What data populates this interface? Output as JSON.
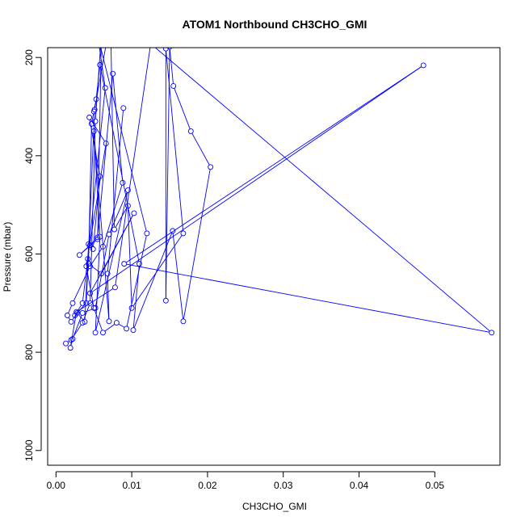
{
  "chart_data": {
    "type": "line",
    "title": "ATOM1 Northbound CH3CHO_GMI",
    "xlabel": "CH3CHO_GMI",
    "ylabel": "Pressure (mbar)",
    "xlim": [
      0.0,
      0.0575
    ],
    "ylim": [
      1030,
      180
    ],
    "y_reversed": true,
    "x_ticks": [
      0.0,
      0.01,
      0.02,
      0.03,
      0.04,
      0.05
    ],
    "x_tick_labels": [
      "0.00",
      "0.01",
      "0.02",
      "0.03",
      "0.04",
      "0.05"
    ],
    "y_ticks": [
      200,
      400,
      600,
      800,
      1000
    ],
    "y_tick_labels": [
      "200",
      "400",
      "600",
      "800",
      "1000"
    ],
    "grid": false,
    "marker": "open-circle",
    "series_color": "#0000ff",
    "series": [
      {
        "points": [
          [
            0.0013,
            782
          ],
          [
            0.002,
            775
          ],
          [
            0.0035,
            740
          ],
          [
            0.0045,
            700
          ],
          [
            0.0052,
            330
          ],
          [
            0.006,
            150
          ],
          [
            0.0055,
            570
          ],
          [
            0.0031,
            602
          ],
          [
            0.0045,
            582
          ],
          [
            0.0055,
            566
          ],
          [
            0.0075,
            233
          ],
          [
            0.0088,
            455
          ],
          [
            0.0062,
            585
          ],
          [
            0.0045,
            625
          ],
          [
            0.0022,
            700
          ],
          [
            0.0015,
            725
          ],
          [
            0.002,
            738
          ],
          [
            0.0028,
            720
          ],
          [
            0.0038,
            738
          ],
          [
            0.0043,
            580
          ],
          [
            0.0049,
            590
          ],
          [
            0.0058,
            442
          ],
          [
            0.0044,
            322
          ],
          [
            0.0066,
            375
          ],
          [
            0.004,
            625
          ],
          [
            0.005,
            710
          ],
          [
            0.0062,
            760
          ],
          [
            0.008,
            740
          ],
          [
            0.0093,
            752
          ],
          [
            0.012,
            558
          ],
          [
            0.0055,
            155
          ],
          [
            0.0065,
            262
          ],
          [
            0.0042,
            610
          ],
          [
            0.0035,
            700
          ],
          [
            0.0025,
            725
          ],
          [
            0.004,
            700
          ],
          [
            0.0051,
            306
          ],
          [
            0.0072,
            122
          ],
          [
            0.0077,
            550
          ],
          [
            0.0095,
            502
          ],
          [
            0.01,
            710
          ],
          [
            0.0168,
            558
          ],
          [
            0.0145,
            182
          ],
          [
            0.0145,
            695
          ],
          [
            0.015,
            178
          ],
          [
            0.0155,
            258
          ],
          [
            0.0178,
            350
          ],
          [
            0.0204,
            423
          ],
          [
            0.0168,
            737
          ],
          [
            0.0154,
            553
          ],
          [
            0.0102,
            755
          ],
          [
            0.011,
            620
          ],
          [
            0.0058,
            215
          ],
          [
            0.0053,
            285
          ],
          [
            0.005,
            310
          ],
          [
            0.0047,
            335
          ],
          [
            0.0043,
            620
          ],
          [
            0.006,
            640
          ],
          [
            0.0103,
            517
          ],
          [
            0.0045,
            680
          ],
          [
            0.0485,
            216
          ],
          [
            0.009,
            620
          ],
          [
            0.0575,
            760
          ],
          [
            0.0125,
            172
          ],
          [
            0.0078,
            668
          ],
          [
            0.0027,
            718
          ],
          [
            0.0019,
            791
          ],
          [
            0.0022,
            773
          ],
          [
            0.0035,
            720
          ],
          [
            0.0052,
            710
          ],
          [
            0.007,
            560
          ],
          [
            0.0095,
            470
          ],
          [
            0.0052,
            760
          ],
          [
            0.0058,
            565
          ],
          [
            0.005,
            350
          ],
          [
            0.007,
            737
          ],
          [
            0.0068,
            640
          ],
          [
            0.0089,
            303
          ]
        ]
      }
    ]
  }
}
